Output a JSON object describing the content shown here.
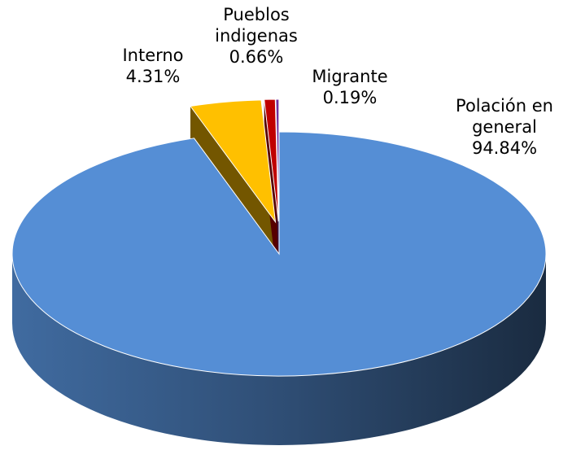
{
  "chart_data": {
    "type": "pie",
    "categories": [
      "Polación en general",
      "Interno",
      "Pueblos indigenas",
      "Migrante"
    ],
    "values": [
      94.84,
      4.31,
      0.66,
      0.19
    ],
    "value_labels": [
      "94.84%",
      "4.31%",
      "0.66%",
      "0.19%"
    ],
    "colors": [
      "#558ed5",
      "#ffc000",
      "#c00000",
      "#7030a0"
    ]
  }
}
